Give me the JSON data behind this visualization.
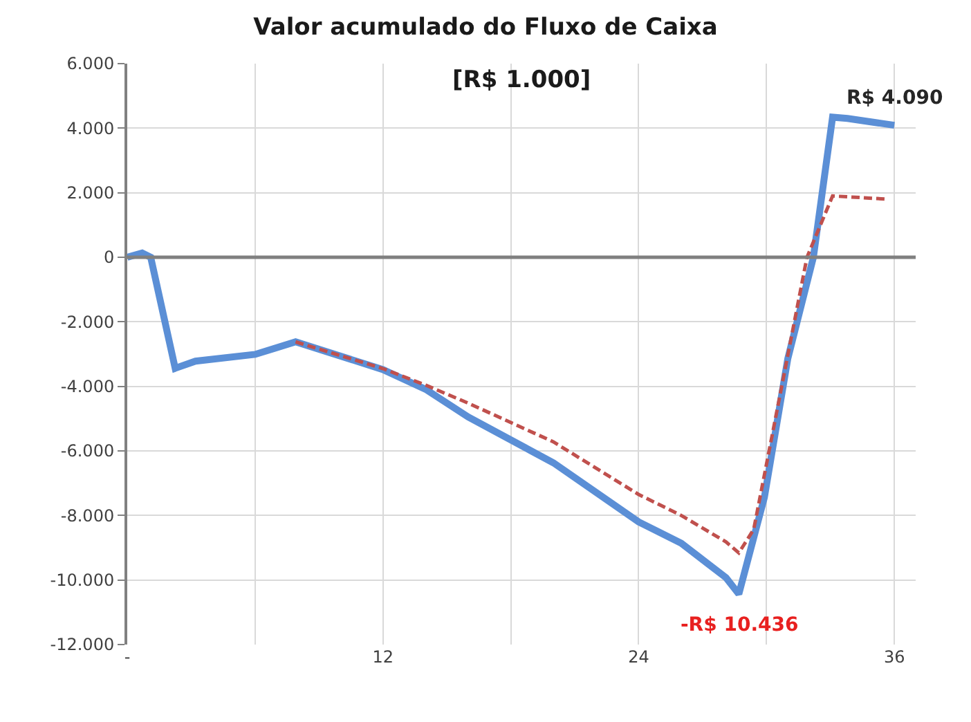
{
  "chart_data": {
    "type": "line",
    "title": "Valor acumulado do Fluxo de Caixa",
    "subtitle": "[R$ 1.000]",
    "series": [
      {
        "color": "#5b8fd6",
        "line_style": "solid",
        "x": [
          0,
          0.7,
          1.1,
          2.25,
          3.2,
          6,
          7.9,
          12,
          14,
          16,
          20,
          24,
          26,
          28.1,
          28.7,
          29.9,
          31,
          32.2,
          33.1,
          33.8,
          36
        ],
        "values": [
          0,
          130,
          0,
          -3440,
          -3220,
          -3010,
          -2620,
          -3480,
          -4090,
          -4950,
          -6370,
          -8200,
          -8860,
          -9930,
          -10436,
          -7440,
          -3140,
          0,
          4340,
          4300,
          4090
        ]
      },
      {
        "color": "#c0504d",
        "line_style": "dashed",
        "x": [
          7.9,
          12,
          14,
          16,
          20,
          24,
          26,
          28.1,
          28.7,
          29.4,
          31.9,
          33.1,
          35.7
        ],
        "values": [
          -2620,
          -3450,
          -3960,
          -4520,
          -5720,
          -7350,
          -8000,
          -8820,
          -9160,
          -8430,
          0,
          1900,
          1800
        ]
      }
    ],
    "xlim": [
      0,
      37
    ],
    "xticks": [
      {
        "value": 0,
        "label": "-"
      },
      {
        "value": 6,
        "label": null
      },
      12,
      {
        "value": 18,
        "label": null
      },
      24,
      {
        "value": 30,
        "label": null
      },
      36
    ],
    "ylim": [
      -12000,
      6000
    ],
    "yticks": [
      {
        "value": -12000,
        "label": "-12.000"
      },
      {
        "value": -10000,
        "label": "-10.000"
      },
      {
        "value": -8000,
        "label": "-8.000"
      },
      {
        "value": -6000,
        "label": "-6.000"
      },
      {
        "value": -4000,
        "label": "-4.000"
      },
      {
        "value": -2000,
        "label": "-2.000"
      },
      0,
      {
        "value": 2000,
        "label": "2.000"
      },
      {
        "value": 4000,
        "label": "4.000"
      },
      {
        "value": 6000,
        "label": "6.000"
      }
    ],
    "grid": true,
    "ref_lines": [
      {
        "axis": "y",
        "value": 0,
        "color": "#808080"
      }
    ],
    "annotations": [
      {
        "text": "R$ 4.090",
        "x": 36,
        "y": 4090
      },
      {
        "text": "-R$ 10.436",
        "x": 28.7,
        "y": -10436
      }
    ]
  }
}
